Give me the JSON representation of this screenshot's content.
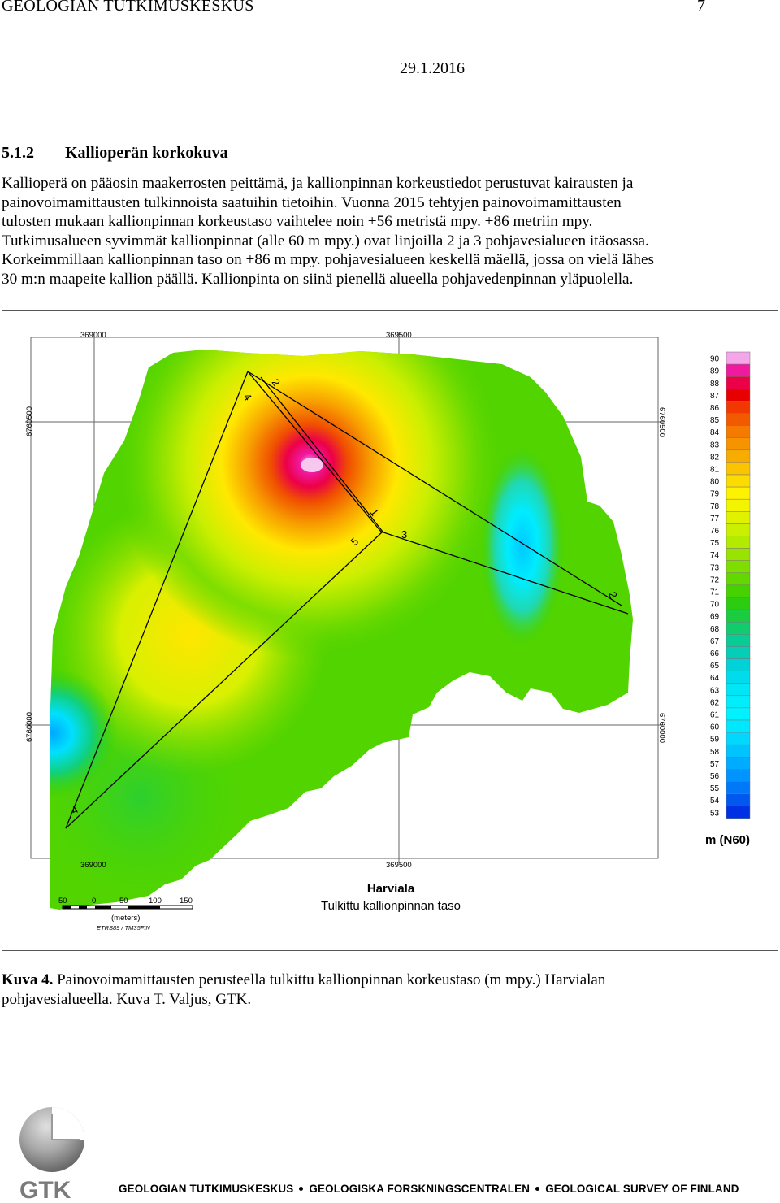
{
  "header": {
    "organization": "GEOLOGIAN TUTKIMUSKESKUS",
    "page_number": "7",
    "date": "29.1.2016"
  },
  "section": {
    "number": "5.1.2",
    "title": "Kallioperän korkokuva"
  },
  "body_lines": [
    "Kallioperä on pääosin maakerrosten peittämä, ja kallionpinnan korkeustiedot perustuvat kairausten ja",
    "painovoimamittausten tulkinnoista saatuihin tietoihin. Vuonna 2015 tehtyjen painovoimamittausten",
    "tulosten mukaan kallionpinnan korkeustaso vaihtelee noin +56 metristä mpy. +86 metriin mpy.",
    "Tutkimusalueen syvimmät kallionpinnat (alle 60 m mpy.) ovat linjoilla 2 ja 3 pohjavesialueen itäosassa.",
    "Korkeimmillaan kallionpinnan taso  on +86 m mpy. pohjavesialueen keskellä mäellä, jossa on vielä lähes",
    "30 m:n maapeite kallion päällä. Kallionpinta on siinä pienellä alueella pohjavedenpinnan yläpuolella."
  ],
  "map": {
    "grid_labels": {
      "x_top_left": "369000",
      "x_top_right": "369500",
      "x_bottom_left": "369000",
      "x_bottom_right": "369500",
      "y_left_upper": "6760500",
      "y_left_lower": "6760000",
      "y_right_upper": "6760500",
      "y_right_lower": "6760000"
    },
    "line_labels": [
      "2",
      "4",
      "1",
      "5",
      "3",
      "2",
      "4"
    ],
    "legend_values": [
      "90",
      "89",
      "88",
      "87",
      "86",
      "85",
      "84",
      "83",
      "82",
      "81",
      "80",
      "79",
      "78",
      "77",
      "76",
      "75",
      "74",
      "73",
      "72",
      "71",
      "70",
      "69",
      "68",
      "67",
      "66",
      "65",
      "64",
      "63",
      "62",
      "61",
      "60",
      "59",
      "58",
      "57",
      "56",
      "55",
      "54",
      "53"
    ],
    "legend_colors": [
      "#f4a6e8",
      "#f01aa0",
      "#ec0048",
      "#e80000",
      "#f03800",
      "#f25a00",
      "#f47a00",
      "#f69400",
      "#f8ac00",
      "#fac400",
      "#fcdc00",
      "#fff200",
      "#f2f400",
      "#e0f200",
      "#cbef00",
      "#b2ea00",
      "#98e400",
      "#7ede00",
      "#62d800",
      "#46d200",
      "#2ccc10",
      "#1ccc40",
      "#10cc6c",
      "#08cc94",
      "#04ceb8",
      "#00d2d8",
      "#00dceb",
      "#00e6f6",
      "#00eefc",
      "#00f2ff",
      "#00e8ff",
      "#00d8ff",
      "#00c4ff",
      "#00acff",
      "#0094ff",
      "#0078f8",
      "#0058ef",
      "#0030e4"
    ],
    "legend_unit": "m (N60)",
    "scale_ticks": [
      "50",
      "0",
      "50",
      "100",
      "150"
    ],
    "scale_unit": "(meters)",
    "crs": "ETRS89 / TM35FIN",
    "place_name": "Harviala",
    "map_subtitle": "Tulkittu kallionpinnan taso"
  },
  "caption": {
    "label": "Kuva 4.",
    "line1": "Painovoimamittausten perusteella tulkittu kallionpinnan korkeustaso (m mpy.) Harvialan",
    "line2": "pohjavesialueella. Kuva T. Valjus, GTK."
  },
  "footer": {
    "logo_text": "GTK",
    "org_fi": "GEOLOGIAN TUTKIMUSKESKUS",
    "org_sv": "GEOLOGISKA FORSKNINGSCENTRALEN",
    "org_en": "GEOLOGICAL SURVEY OF FINLAND"
  }
}
